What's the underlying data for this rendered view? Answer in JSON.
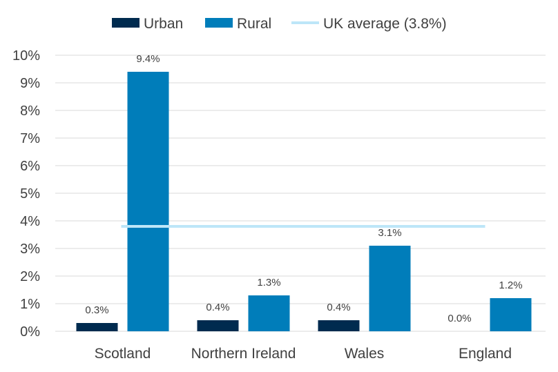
{
  "chart_data": {
    "type": "bar",
    "categories": [
      "Scotland",
      "Northern Ireland",
      "Wales",
      "England"
    ],
    "series": [
      {
        "name": "Urban",
        "values": [
          0.3,
          0.4,
          0.4,
          0.0
        ],
        "labels": [
          "0.3%",
          "0.4%",
          "0.4%",
          "0.0%"
        ],
        "color": "#002b4f"
      },
      {
        "name": "Rural",
        "values": [
          9.4,
          1.3,
          3.1,
          1.2
        ],
        "labels": [
          "9.4%",
          "1.3%",
          "3.1%",
          "1.2%"
        ],
        "color": "#007dba"
      }
    ],
    "reference_line": {
      "name": "UK average (3.8%)",
      "value": 3.8,
      "color": "#bde6f8"
    },
    "ylim": [
      0,
      10
    ],
    "yticks": [
      "0%",
      "1%",
      "2%",
      "3%",
      "4%",
      "5%",
      "6%",
      "7%",
      "8%",
      "9%",
      "10%"
    ],
    "grid": true,
    "legend_position": "top"
  }
}
